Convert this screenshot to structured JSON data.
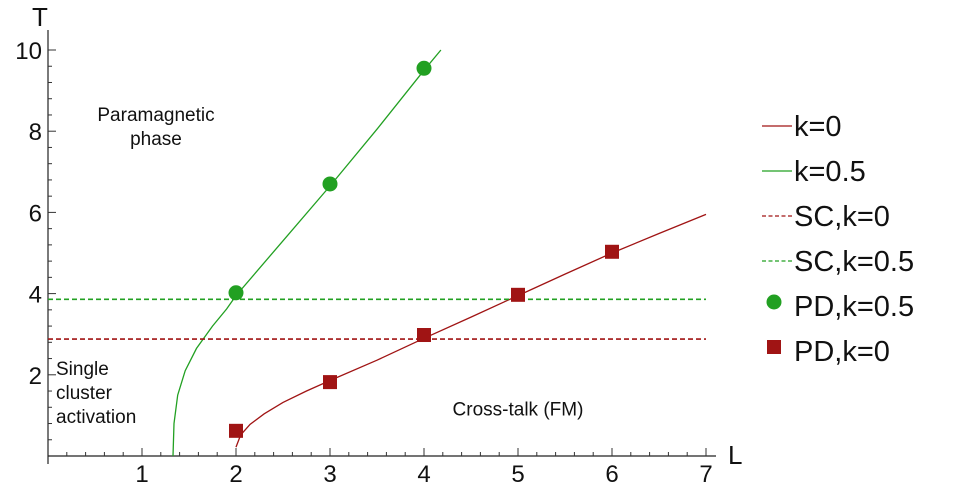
{
  "chart_data": {
    "type": "line",
    "xlabel": "L",
    "ylabel": "T",
    "xlim": [
      0,
      7
    ],
    "ylim": [
      0,
      10
    ],
    "xticks": [
      1,
      2,
      3,
      4,
      5,
      6,
      7
    ],
    "yticks": [
      2,
      4,
      6,
      8,
      10
    ],
    "x_minor_step": 0.2,
    "y_minor_step": 0.4,
    "grid": false,
    "legend_position": "right",
    "series": [
      {
        "name": "k=0",
        "kind": "curve",
        "color": "#a01414",
        "style": "solid",
        "points": [
          [
            2.0,
            0.22
          ],
          [
            2.05,
            0.52
          ],
          [
            2.15,
            0.78
          ],
          [
            2.3,
            1.04
          ],
          [
            2.5,
            1.32
          ],
          [
            2.75,
            1.6
          ],
          [
            3.0,
            1.86
          ],
          [
            3.5,
            2.36
          ],
          [
            4.0,
            2.9
          ],
          [
            4.5,
            3.42
          ],
          [
            5.0,
            3.95
          ],
          [
            5.5,
            4.48
          ],
          [
            6.0,
            5.0
          ],
          [
            6.5,
            5.48
          ],
          [
            7.0,
            5.95
          ]
        ]
      },
      {
        "name": "k=0.5",
        "kind": "curve",
        "color": "#22a022",
        "style": "solid",
        "points": [
          [
            1.33,
            0.0
          ],
          [
            1.34,
            0.8
          ],
          [
            1.38,
            1.5
          ],
          [
            1.46,
            2.1
          ],
          [
            1.58,
            2.65
          ],
          [
            1.75,
            3.2
          ],
          [
            1.9,
            3.62
          ],
          [
            2.0,
            3.95
          ],
          [
            2.5,
            5.3
          ],
          [
            3.0,
            6.65
          ],
          [
            3.5,
            8.05
          ],
          [
            4.0,
            9.5
          ],
          [
            4.18,
            10.0
          ]
        ]
      },
      {
        "name": "SC,k=0",
        "kind": "hline",
        "color": "#a01414",
        "style": "dashed",
        "y": 2.88
      },
      {
        "name": "SC,k=0.5",
        "kind": "hline",
        "color": "#22a022",
        "style": "dashed",
        "y": 3.86
      },
      {
        "name": "PD,k=0.5",
        "kind": "scatter",
        "marker": "circle",
        "color": "#22a022",
        "points": [
          [
            2,
            4.02
          ],
          [
            3,
            6.7
          ],
          [
            4,
            9.55
          ]
        ]
      },
      {
        "name": "PD,k=0",
        "kind": "scatter",
        "marker": "square",
        "color": "#a01414",
        "points": [
          [
            2,
            0.62
          ],
          [
            3,
            1.82
          ],
          [
            4,
            2.98
          ],
          [
            5,
            3.97
          ],
          [
            6,
            5.03
          ]
        ]
      }
    ],
    "annotations": [
      {
        "lines": [
          "Paramagnetic",
          "phase"
        ],
        "x": 1.0,
        "y": 8.25
      },
      {
        "lines": [
          "Single",
          "cluster",
          "activation"
        ],
        "x": 0.1,
        "y": 2.0
      },
      {
        "lines": [
          "Cross-talk (FM)"
        ],
        "x": 4.8,
        "y": 1.0
      }
    ]
  }
}
